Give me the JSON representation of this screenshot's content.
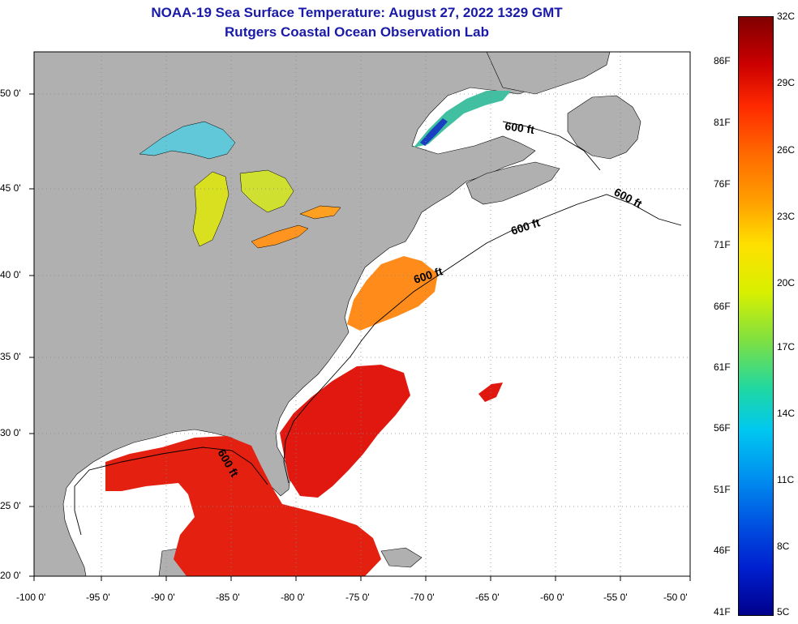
{
  "title": {
    "line1": "NOAA-19 Sea Surface Temperature:  August 27, 2022 1329 GMT",
    "line2": "Rutgers Coastal Ocean Observation Lab"
  },
  "axes": {
    "lon_labels": [
      "-100 0'",
      "-95 0'",
      "-90 0'",
      "-85 0'",
      "-80 0'",
      "-75 0'",
      "-70 0'",
      "-65 0'",
      "-60 0'",
      "-55 0'",
      "-50 0'"
    ],
    "lat_labels": [
      "50 0'",
      "45 0'",
      "40 0'",
      "35 0'",
      "30 0'",
      "25 0'",
      "20 0'"
    ],
    "lon_range": [
      -100,
      -50
    ],
    "lat_range": [
      20,
      52
    ]
  },
  "contour": {
    "label": "600 ft",
    "label_count": 5
  },
  "colorbar": {
    "celsius_labels": [
      "32C",
      "29C",
      "26C",
      "23C",
      "20C",
      "17C",
      "14C",
      "11C",
      "8C",
      "5C"
    ],
    "fahrenheit_labels": [
      "86F",
      "81F",
      "76F",
      "71F",
      "66F",
      "61F",
      "56F",
      "51F",
      "46F",
      "41F"
    ],
    "range_c": [
      5,
      32
    ],
    "range_f": [
      41,
      90
    ],
    "colors_top_to_bottom": [
      "#800000",
      "#cc0000",
      "#ff2a00",
      "#ff6a00",
      "#ffa000",
      "#ffe000",
      "#d8f000",
      "#80e040",
      "#20d8a0",
      "#00c8f0",
      "#0090f0",
      "#0050e0",
      "#0020d0",
      "#00008c"
    ]
  },
  "colors": {
    "land": "#b0b0b0",
    "ocean_nodata": "#ffffff",
    "title": "#1a1aa8",
    "warm": "#e01810",
    "mid": "#ff8c1a",
    "cool": "#c8e040"
  }
}
